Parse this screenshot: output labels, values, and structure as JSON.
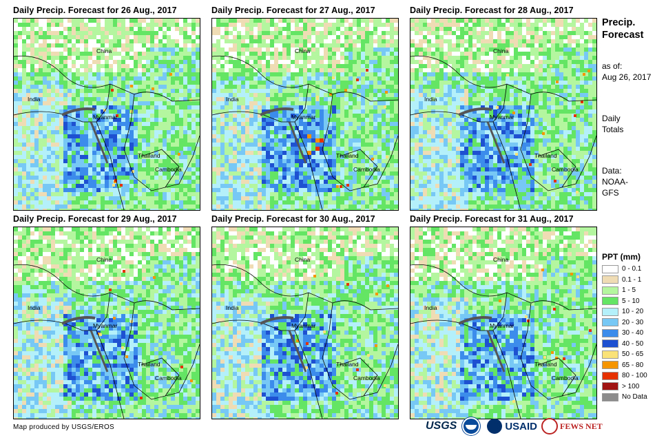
{
  "panels": [
    {
      "title": "Daily Precip. Forecast for 26 Aug., 2017"
    },
    {
      "title": "Daily Precip. Forecast for 27 Aug., 2017"
    },
    {
      "title": "Daily Precip. Forecast for 28 Aug., 2017"
    },
    {
      "title": "Daily Precip. Forecast for 29 Aug., 2017"
    },
    {
      "title": "Daily Precip. Forecast for 30 Aug., 2017"
    },
    {
      "title": "Daily Precip. Forecast for 31 Aug., 2017"
    }
  ],
  "map_labels": {
    "china": "China",
    "india": "India",
    "myanmar": "Myanmar",
    "thailand": "Thailand",
    "cambodia": "Cambodia"
  },
  "side": {
    "title_line1": "Precip.",
    "title_line2": "Forecast",
    "asof_line1": "as of:",
    "asof_line2": "Aug 26, 2017",
    "daily_line1": "Daily",
    "daily_line2": "Totals",
    "data_line1": "Data:",
    "data_line2": "NOAA-",
    "data_line3": "GFS"
  },
  "legend": {
    "title": "PPT (mm)",
    "items": [
      {
        "label": "0 - 0.1",
        "color": "#ffffff"
      },
      {
        "label": "0.1 - 1",
        "color": "#f0dcb4"
      },
      {
        "label": "1 - 5",
        "color": "#b4f5a0"
      },
      {
        "label": "5 - 10",
        "color": "#64e664"
      },
      {
        "label": "10 - 20",
        "color": "#b4f0fa"
      },
      {
        "label": "20 - 30",
        "color": "#78c8f5"
      },
      {
        "label": "30 - 40",
        "color": "#3c8ceb"
      },
      {
        "label": "40 - 50",
        "color": "#1e50d2"
      },
      {
        "label": "50 - 65",
        "color": "#fae178"
      },
      {
        "label": "65 - 80",
        "color": "#f59600"
      },
      {
        "label": "80 - 100",
        "color": "#e63200"
      },
      {
        "label": "> 100",
        "color": "#a01414"
      },
      {
        "label": "No Data",
        "color": "#8c8c8c"
      }
    ]
  },
  "credit": "Map produced by USGS/EROS",
  "logos": {
    "usgs": "USGS",
    "usaid": "USAID",
    "fews": "FEWS NET"
  }
}
